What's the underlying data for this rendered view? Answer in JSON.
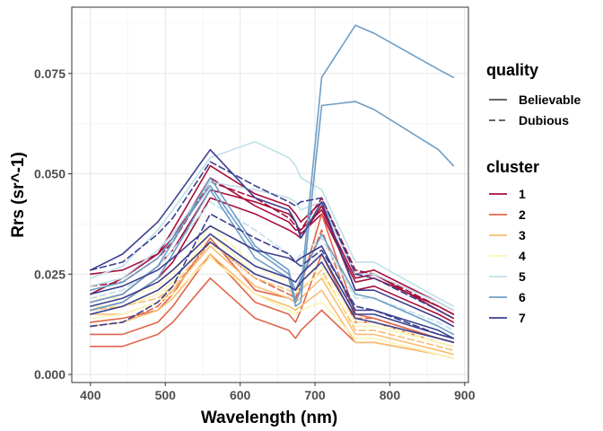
{
  "chart_data": {
    "type": "line",
    "xlabel": "Wavelength (nm)",
    "ylabel": "Rrs (sr^-1)",
    "xlim": [
      375,
      905
    ],
    "ylim": [
      -0.002,
      0.0915
    ],
    "x_ticks": [
      400,
      500,
      600,
      700,
      800,
      900
    ],
    "x_tick_labels": [
      "400",
      "500",
      "600",
      "700",
      "800",
      "900"
    ],
    "y_ticks": [
      0.0,
      0.025,
      0.05,
      0.075
    ],
    "y_tick_labels": [
      "0.000",
      "0.025",
      "0.050",
      "0.075"
    ],
    "grid": true,
    "legend_position": "right",
    "legends": [
      {
        "title": "quality",
        "entries": [
          {
            "label": "Believable",
            "linetype": "solid"
          },
          {
            "label": "Dubious",
            "linetype": "dashed"
          }
        ]
      },
      {
        "title": "cluster",
        "entries": [
          {
            "label": "1",
            "color": "#A50F3C"
          },
          {
            "label": "2",
            "color": "#E0664A"
          },
          {
            "label": "3",
            "color": "#F9BE72"
          },
          {
            "label": "4",
            "color": "#FBF4B4"
          },
          {
            "label": "5",
            "color": "#BFE0EA"
          },
          {
            "label": "6",
            "color": "#6E9EC6"
          },
          {
            "label": "7",
            "color": "#3B3F8F"
          }
        ]
      }
    ],
    "x": [
      400,
      443,
      490,
      510,
      560,
      620,
      665,
      674,
      681,
      709,
      754,
      779,
      865,
      885
    ],
    "series": [
      {
        "cluster": "1",
        "quality": "Believable",
        "values": [
          0.025,
          0.026,
          0.03,
          0.036,
          0.052,
          0.045,
          0.042,
          0.04,
          0.038,
          0.043,
          0.025,
          0.026,
          0.018,
          0.016
        ]
      },
      {
        "cluster": "1",
        "quality": "Believable",
        "values": [
          0.018,
          0.02,
          0.027,
          0.031,
          0.046,
          0.043,
          0.04,
          0.038,
          0.035,
          0.04,
          0.023,
          0.024,
          0.017,
          0.015
        ]
      },
      {
        "cluster": "1",
        "quality": "Believable",
        "values": [
          0.02,
          0.024,
          0.03,
          0.034,
          0.049,
          0.042,
          0.038,
          0.036,
          0.036,
          0.041,
          0.024,
          0.025,
          0.016,
          0.014
        ]
      },
      {
        "cluster": "1",
        "quality": "Believable",
        "values": [
          0.016,
          0.018,
          0.024,
          0.028,
          0.044,
          0.04,
          0.036,
          0.035,
          0.034,
          0.042,
          0.021,
          0.022,
          0.015,
          0.013
        ]
      },
      {
        "cluster": "1",
        "quality": "Dubious",
        "values": [
          0.022,
          0.023,
          0.029,
          0.033,
          0.048,
          0.044,
          0.039,
          0.037,
          0.036,
          0.044,
          0.026,
          0.025,
          0.017,
          0.015
        ]
      },
      {
        "cluster": "2",
        "quality": "Believable",
        "values": [
          0.007,
          0.007,
          0.01,
          0.013,
          0.024,
          0.014,
          0.011,
          0.009,
          0.011,
          0.016,
          0.008,
          0.008,
          0.005,
          0.004
        ]
      },
      {
        "cluster": "2",
        "quality": "Believable",
        "values": [
          0.01,
          0.01,
          0.013,
          0.017,
          0.03,
          0.018,
          0.015,
          0.013,
          0.016,
          0.03,
          0.013,
          0.013,
          0.008,
          0.007
        ]
      },
      {
        "cluster": "2",
        "quality": "Believable",
        "values": [
          0.013,
          0.014,
          0.016,
          0.02,
          0.034,
          0.021,
          0.019,
          0.018,
          0.022,
          0.04,
          0.015,
          0.014,
          0.009,
          0.008
        ]
      },
      {
        "cluster": "2",
        "quality": "Dubious",
        "values": [
          0.012,
          0.013,
          0.017,
          0.021,
          0.033,
          0.024,
          0.02,
          0.019,
          0.023,
          0.036,
          0.014,
          0.014,
          0.009,
          0.008
        ]
      },
      {
        "cluster": "3",
        "quality": "Believable",
        "values": [
          0.015,
          0.015,
          0.018,
          0.021,
          0.032,
          0.022,
          0.019,
          0.018,
          0.019,
          0.024,
          0.01,
          0.01,
          0.006,
          0.005
        ]
      },
      {
        "cluster": "3",
        "quality": "Believable",
        "values": [
          0.012,
          0.013,
          0.016,
          0.019,
          0.03,
          0.02,
          0.017,
          0.016,
          0.017,
          0.021,
          0.008,
          0.008,
          0.005,
          0.004
        ]
      },
      {
        "cluster": "3",
        "quality": "Dubious",
        "values": [
          0.016,
          0.017,
          0.019,
          0.022,
          0.033,
          0.024,
          0.021,
          0.02,
          0.021,
          0.026,
          0.011,
          0.011,
          0.007,
          0.006
        ]
      },
      {
        "cluster": "4",
        "quality": "Believable",
        "values": [
          0.017,
          0.017,
          0.02,
          0.023,
          0.035,
          0.025,
          0.022,
          0.021,
          0.022,
          0.025,
          0.012,
          0.012,
          0.008,
          0.007
        ]
      },
      {
        "cluster": "4",
        "quality": "Believable",
        "values": [
          0.014,
          0.015,
          0.018,
          0.02,
          0.029,
          0.02,
          0.016,
          0.015,
          0.016,
          0.018,
          0.009,
          0.009,
          0.005,
          0.004
        ]
      },
      {
        "cluster": "4",
        "quality": "Dubious",
        "values": [
          0.019,
          0.019,
          0.022,
          0.025,
          0.037,
          0.027,
          0.023,
          0.022,
          0.023,
          0.027,
          0.013,
          0.013,
          0.008,
          0.007
        ]
      },
      {
        "cluster": "5",
        "quality": "Believable",
        "values": [
          0.024,
          0.027,
          0.036,
          0.041,
          0.054,
          0.058,
          0.054,
          0.052,
          0.049,
          0.046,
          0.028,
          0.028,
          0.019,
          0.017
        ]
      },
      {
        "cluster": "5",
        "quality": "Believable",
        "values": [
          0.022,
          0.024,
          0.031,
          0.035,
          0.048,
          0.046,
          0.044,
          0.043,
          0.041,
          0.043,
          0.025,
          0.025,
          0.018,
          0.016
        ]
      },
      {
        "cluster": "5",
        "quality": "Dubious",
        "values": [
          0.019,
          0.021,
          0.027,
          0.031,
          0.043,
          0.036,
          0.03,
          0.028,
          0.03,
          0.034,
          0.019,
          0.019,
          0.013,
          0.011
        ]
      },
      {
        "cluster": "6",
        "quality": "Believable",
        "values": [
          0.018,
          0.02,
          0.027,
          0.033,
          0.049,
          0.032,
          0.026,
          0.018,
          0.021,
          0.074,
          0.087,
          0.085,
          0.076,
          0.074
        ]
      },
      {
        "cluster": "6",
        "quality": "Believable",
        "values": [
          0.016,
          0.018,
          0.024,
          0.03,
          0.046,
          0.029,
          0.024,
          0.017,
          0.018,
          0.067,
          0.068,
          0.066,
          0.056,
          0.052
        ]
      },
      {
        "cluster": "6",
        "quality": "Believable",
        "values": [
          0.021,
          0.023,
          0.029,
          0.034,
          0.047,
          0.031,
          0.025,
          0.021,
          0.024,
          0.035,
          0.02,
          0.019,
          0.012,
          0.01
        ]
      },
      {
        "cluster": "7",
        "quality": "Believable",
        "values": [
          0.026,
          0.03,
          0.038,
          0.043,
          0.056,
          0.044,
          0.041,
          0.038,
          0.034,
          0.043,
          0.021,
          0.021,
          0.014,
          0.012
        ]
      },
      {
        "cluster": "7",
        "quality": "Believable",
        "values": [
          0.02,
          0.022,
          0.026,
          0.029,
          0.037,
          0.031,
          0.029,
          0.028,
          0.029,
          0.032,
          0.016,
          0.016,
          0.011,
          0.009
        ]
      },
      {
        "cluster": "7",
        "quality": "Believable",
        "values": [
          0.017,
          0.019,
          0.023,
          0.026,
          0.035,
          0.027,
          0.024,
          0.023,
          0.025,
          0.03,
          0.015,
          0.015,
          0.01,
          0.009
        ]
      },
      {
        "cluster": "7",
        "quality": "Believable",
        "values": [
          0.015,
          0.017,
          0.021,
          0.024,
          0.033,
          0.025,
          0.022,
          0.021,
          0.023,
          0.028,
          0.014,
          0.013,
          0.009,
          0.008
        ]
      },
      {
        "cluster": "7",
        "quality": "Dubious",
        "values": [
          0.026,
          0.028,
          0.035,
          0.039,
          0.053,
          0.047,
          0.043,
          0.042,
          0.043,
          0.044,
          0.025,
          0.024,
          0.016,
          0.014
        ]
      },
      {
        "cluster": "7",
        "quality": "Dubious",
        "values": [
          0.012,
          0.013,
          0.018,
          0.022,
          0.04,
          0.034,
          0.03,
          0.028,
          0.027,
          0.031,
          0.017,
          0.016,
          0.01,
          0.009
        ]
      }
    ]
  }
}
